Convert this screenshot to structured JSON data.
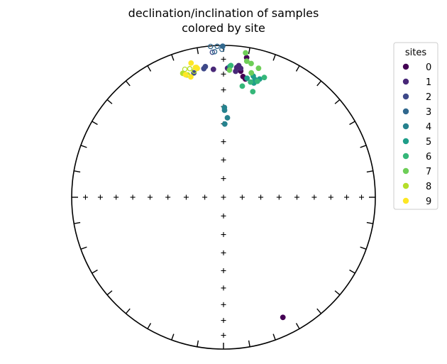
{
  "chart_data": {
    "type": "scatter",
    "projection": "equal-area stereonet",
    "title": [
      "declination/inclination of samples",
      "colored by site"
    ],
    "legend": {
      "title": "sites",
      "placement": "upper-right outside",
      "entries": [
        {
          "label": "0",
          "color": "#440154"
        },
        {
          "label": "1",
          "color": "#482878"
        },
        {
          "label": "2",
          "color": "#3e4989"
        },
        {
          "label": "3",
          "color": "#31688e"
        },
        {
          "label": "4",
          "color": "#26828e"
        },
        {
          "label": "5",
          "color": "#1f9e89"
        },
        {
          "label": "6",
          "color": "#35b779"
        },
        {
          "label": "7",
          "color": "#6ece58"
        },
        {
          "label": "8",
          "color": "#b5de2b"
        },
        {
          "label": "9",
          "color": "#fde725"
        }
      ]
    },
    "marker_style": {
      "filled": "lower hemisphere (positive inclination)",
      "open": "upper hemisphere (negative inclination)"
    },
    "series": [
      {
        "name": "0",
        "points": [
          [
            9.4,
            7.6,
            true
          ],
          [
            9.2,
            20.6,
            true
          ],
          [
            10.5,
            21.9,
            true
          ],
          [
            7.8,
            17.3,
            true
          ],
          [
            153.7,
            12.8,
            true
          ]
        ]
      },
      {
        "name": "1",
        "points": [
          [
            355.5,
            16.6,
            true
          ],
          [
            1.8,
            16.1,
            true
          ],
          [
            5.5,
            17.8,
            true
          ],
          [
            5.8,
            15.2,
            true
          ],
          [
            6.6,
            13.8,
            true
          ],
          [
            7.6,
            15.5,
            true
          ]
        ]
      },
      {
        "name": "2",
        "points": [
          [
            351.3,
            15.4,
            true
          ],
          [
            346.6,
            16.9,
            true
          ],
          [
            352.1,
            14.2,
            true
          ],
          [
            355.6,
            4.7,
            false
          ]
        ]
      },
      {
        "name": "3",
        "points": [
          [
            355.1,
            0.4,
            false
          ],
          [
            357.6,
            0.6,
            false
          ],
          [
            359.4,
            2.9,
            false
          ],
          [
            356.5,
            4.5,
            false
          ],
          [
            359.7,
            0.6,
            true
          ]
        ]
      },
      {
        "name": "4",
        "points": [
          [
            0.7,
            42.2,
            true
          ],
          [
            2.8,
            46.5,
            true
          ],
          [
            0.6,
            40.6,
            true
          ],
          [
            1.0,
            50.1,
            true
          ]
        ]
      },
      {
        "name": "5",
        "points": [
          [
            13.8,
            19.0,
            true
          ],
          [
            2.8,
            14.8,
            true
          ],
          [
            11.2,
            21.2,
            true
          ],
          [
            14.9,
            23.2,
            true
          ],
          [
            17.0,
            19.7,
            true
          ],
          [
            15.0,
            20.9,
            true
          ],
          [
            16.1,
            21.5,
            true
          ]
        ]
      },
      {
        "name": "6",
        "points": [
          [
            9.6,
            26.7,
            true
          ],
          [
            18.8,
            17.8,
            true
          ],
          [
            15.5,
            28.6,
            true
          ],
          [
            3.2,
            14.2,
            true
          ],
          [
            13.2,
            23.1,
            true
          ],
          [
            16.3,
            21.5,
            true
          ]
        ]
      },
      {
        "name": "7",
        "points": [
          [
            8.7,
            4.3,
            true
          ],
          [
            9.7,
            10.0,
            true
          ],
          [
            11.7,
            11.0,
            true
          ],
          [
            15.2,
            13.0,
            true
          ],
          [
            12.6,
            17.2,
            true
          ],
          [
            2.7,
            17.3,
            true
          ]
        ]
      },
      {
        "name": "8",
        "points": [
          [
            343.2,
            13.0,
            false
          ],
          [
            345.3,
            13.5,
            false
          ],
          [
            341.8,
            15.2,
            true
          ],
          [
            343.3,
            17.1,
            false
          ],
          [
            343.7,
            17.1,
            false
          ],
          [
            346.9,
            15.9,
            false
          ]
        ]
      },
      {
        "name": "9",
        "points": [
          [
            346.4,
            10.0,
            true
          ],
          [
            342.8,
            16.6,
            true
          ],
          [
            344.8,
            19.0,
            true
          ],
          [
            348.2,
            13.7,
            true
          ],
          [
            347.8,
            13.6,
            true
          ],
          [
            348.5,
            14.5,
            true
          ]
        ]
      }
    ]
  }
}
